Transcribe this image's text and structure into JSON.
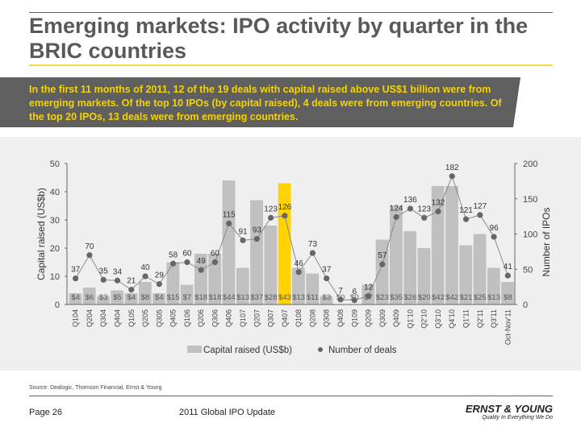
{
  "title": "Emerging markets: IPO activity by quarter in the BRIC countries",
  "callout": "In the first 11 months of 2011, 12 of the 19 deals with capital raised above US$1 billion were from emerging markets. Of the top 10 IPOs (by capital raised), 4 deals were from emerging countries. Of the top 20 IPOs, 13 deals were from emerging countries.",
  "source": "Source: Dealogic, Thomson Financial, Ernst & Young",
  "footer": {
    "page": "Page 26",
    "document": "2011 Global IPO Update",
    "logo_name": "ERNST & YOUNG",
    "logo_tagline": "Quality In Everything We Do"
  },
  "colors": {
    "bar": "#c0c0c0",
    "highlight_bar": "#ffd200",
    "line": "#8a8a8a",
    "dot": "#666666",
    "callout_bg": "#5f5f5f",
    "callout_text": "#f5d300"
  },
  "chart_data": {
    "type": "bar+line",
    "categories": [
      "Q104",
      "Q204",
      "Q304",
      "Q404",
      "Q105",
      "Q205",
      "Q305",
      "Q405",
      "Q106",
      "Q206",
      "Q306",
      "Q406",
      "Q107",
      "Q207",
      "Q307",
      "Q407",
      "Q108",
      "Q208",
      "Q308",
      "Q408",
      "Q109",
      "Q209",
      "Q309",
      "Q409",
      "Q1'10",
      "Q2'10",
      "Q3'10",
      "Q4'10",
      "Q1'11",
      "Q2'11",
      "Q3'11",
      "Oct-Nov'11"
    ],
    "series": [
      {
        "name": "Capital raised (US$b)",
        "type": "bar",
        "axis": "left",
        "values": [
          4,
          6,
          3,
          5,
          4,
          8,
          4,
          15,
          7,
          18,
          18,
          44,
          13,
          37,
          28,
          43,
          13,
          11,
          3,
          0,
          0,
          7,
          23,
          35,
          26,
          20,
          42,
          42,
          21,
          25,
          13,
          8
        ]
      },
      {
        "name": "Number of deals",
        "type": "line",
        "axis": "right",
        "values": [
          37,
          70,
          35,
          34,
          21,
          40,
          29,
          58,
          60,
          49,
          60,
          115,
          91,
          93,
          123,
          126,
          46,
          73,
          37,
          7,
          6,
          12,
          57,
          124,
          136,
          123,
          132,
          182,
          121,
          127,
          96,
          41
        ]
      }
    ],
    "highlight_category": "Q407",
    "ylabel": "Capital raised (US$b)",
    "y2label": "Number of IPOs",
    "ylim": [
      0,
      50
    ],
    "y2lim": [
      0,
      200
    ],
    "yticks": [
      0,
      10,
      20,
      30,
      40,
      50
    ],
    "y2ticks": [
      0,
      50,
      100,
      150,
      200
    ],
    "bar_label_prefix": "$",
    "legend": "bottom",
    "grid": false
  }
}
